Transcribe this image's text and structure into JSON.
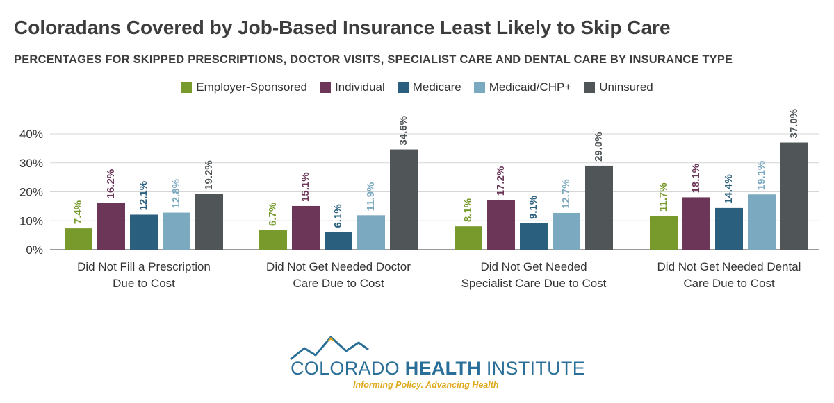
{
  "title": "Coloradans Covered by Job-Based Insurance Least Likely to Skip Care",
  "subtitle": "PERCENTAGES FOR SKIPPED PRESCRIPTIONS, DOCTOR VISITS, SPECIALIST CARE AND DENTAL CARE BY INSURANCE TYPE",
  "logo": {
    "name_regular_1": "COLORADO ",
    "name_bold": "HEALTH",
    "name_regular_2": " INSTITUTE",
    "tagline": "Informing Policy. Advancing Health"
  },
  "chart_data": {
    "type": "bar",
    "categories": [
      [
        "Did Not Fill a Prescription",
        "Due to Cost"
      ],
      [
        "Did Not Get Needed Doctor",
        "Care Due to Cost"
      ],
      [
        "Did Not Get Needed",
        "Specialist Care Due to Cost"
      ],
      [
        "Did Not Get Needed Dental",
        "Care Due to Cost"
      ]
    ],
    "series": [
      {
        "name": "Employer-Sponsored",
        "color": "#789a2d",
        "values": [
          7.4,
          6.7,
          8.1,
          11.7
        ],
        "labels": [
          "7.4%",
          "6.7%",
          "8.1%",
          "11.7%"
        ]
      },
      {
        "name": "Individual",
        "color": "#6b3658",
        "values": [
          16.2,
          15.1,
          17.2,
          18.1
        ],
        "labels": [
          "16.2%",
          "15.1%",
          "17.2%",
          "18.1%"
        ]
      },
      {
        "name": "Medicare",
        "color": "#2a5f7e",
        "values": [
          12.1,
          6.1,
          9.1,
          14.4
        ],
        "labels": [
          "12.1%",
          "6.1%",
          "9.1%",
          "14.4%"
        ]
      },
      {
        "name": "Medicaid/CHP+",
        "color": "#7ba9bf",
        "values": [
          12.8,
          11.9,
          12.7,
          19.1
        ],
        "labels": [
          "12.8%",
          "11.9%",
          "12.7%",
          "19.1%"
        ]
      },
      {
        "name": "Uninsured",
        "color": "#505558",
        "values": [
          19.2,
          34.6,
          29.0,
          37.0
        ],
        "labels": [
          "19.2%",
          "34.6%",
          "29.0%",
          "37.0%"
        ]
      }
    ],
    "yticks": [
      0,
      10,
      20,
      30,
      40
    ],
    "ytick_labels": [
      "0%",
      "10%",
      "20%",
      "30%",
      "40%"
    ],
    "ylim": [
      0,
      40
    ],
    "grid": true,
    "legend_position": "top-center"
  }
}
